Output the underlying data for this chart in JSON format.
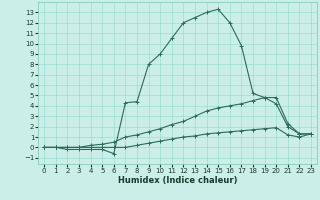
{
  "xlabel": "Humidex (Indice chaleur)",
  "bg_color": "#cceee8",
  "grid_color": "#99ddd3",
  "line_color": "#2a6b5a",
  "xlim": [
    -0.5,
    23.5
  ],
  "ylim": [
    -1.6,
    14.0
  ],
  "xticks": [
    0,
    1,
    2,
    3,
    4,
    5,
    6,
    7,
    8,
    9,
    10,
    11,
    12,
    13,
    14,
    15,
    16,
    17,
    18,
    19,
    20,
    21,
    22,
    23
  ],
  "yticks": [
    -1,
    0,
    1,
    2,
    3,
    4,
    5,
    6,
    7,
    8,
    9,
    10,
    11,
    12,
    13
  ],
  "line1_x": [
    0,
    1,
    2,
    3,
    4,
    5,
    6,
    7,
    8,
    9,
    10,
    11,
    12,
    13,
    14,
    15,
    16,
    17,
    18,
    19,
    20,
    21,
    22,
    23
  ],
  "line1_y": [
    0.0,
    0.0,
    -0.2,
    -0.2,
    -0.2,
    -0.2,
    -0.6,
    4.3,
    4.4,
    8.0,
    9.0,
    10.5,
    12.0,
    12.5,
    13.0,
    13.3,
    12.0,
    9.8,
    5.2,
    4.8,
    4.2,
    2.0,
    1.3,
    1.3
  ],
  "line2_x": [
    0,
    1,
    2,
    3,
    4,
    5,
    6,
    7,
    8,
    9,
    10,
    11,
    12,
    13,
    14,
    15,
    16,
    17,
    18,
    19,
    20,
    21,
    22,
    23
  ],
  "line2_y": [
    0.0,
    0.0,
    0.0,
    0.0,
    0.2,
    0.3,
    0.5,
    1.0,
    1.2,
    1.5,
    1.8,
    2.2,
    2.5,
    3.0,
    3.5,
    3.8,
    4.0,
    4.2,
    4.5,
    4.8,
    4.8,
    2.3,
    1.3,
    1.3
  ],
  "line3_x": [
    0,
    1,
    2,
    3,
    4,
    5,
    6,
    7,
    8,
    9,
    10,
    11,
    12,
    13,
    14,
    15,
    16,
    17,
    18,
    19,
    20,
    21,
    22,
    23
  ],
  "line3_y": [
    0.0,
    0.0,
    0.0,
    0.0,
    0.0,
    0.0,
    0.0,
    0.0,
    0.2,
    0.4,
    0.6,
    0.8,
    1.0,
    1.1,
    1.3,
    1.4,
    1.5,
    1.6,
    1.7,
    1.8,
    1.9,
    1.2,
    1.0,
    1.3
  ]
}
